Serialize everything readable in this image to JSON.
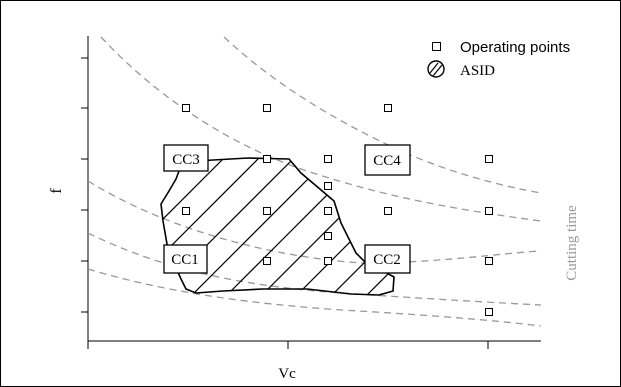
{
  "legend": {
    "operating_points": "Operating points",
    "asid": "ASID"
  },
  "axes": {
    "xlabel": "Vc",
    "ylabel": "f",
    "curve_label": "Cutting time"
  },
  "zones": {
    "cc1": "CC1",
    "cc2": "CC2",
    "cc3": "CC3",
    "cc4": "CC4"
  },
  "colors": {
    "curves": "#999999",
    "curve_label": "#999999",
    "ink": "#000000"
  }
}
